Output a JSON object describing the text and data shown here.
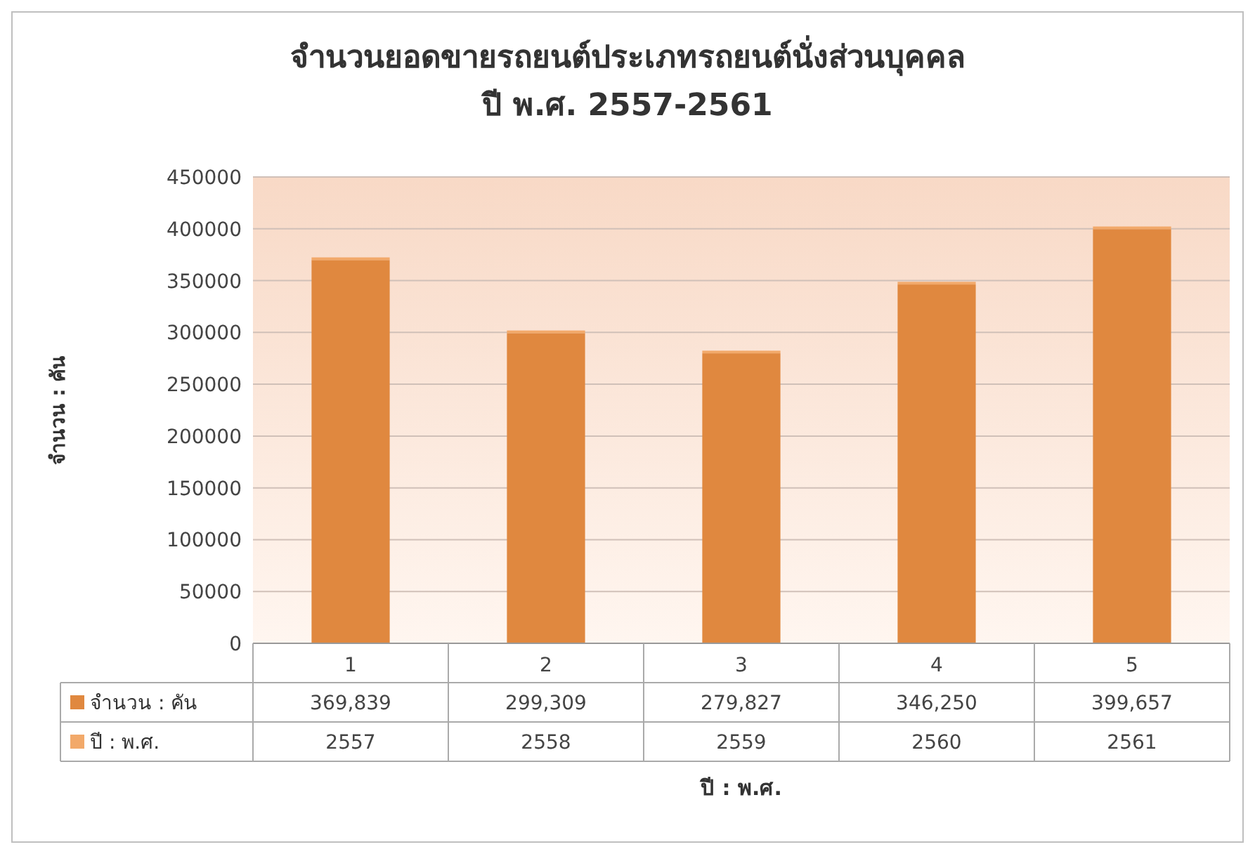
{
  "chart_data": {
    "type": "bar",
    "title": "จำนวนยอดขายรถยนต์ประเภทรถยนต์นั่งส่วนบุคคล",
    "subtitle": "ปี พ.ศ. 2557-2561",
    "xlabel": "ปี : พ.ศ.",
    "ylabel": "จำนวน : คัน",
    "categories": [
      "1",
      "2",
      "3",
      "4",
      "5"
    ],
    "stacked": true,
    "ylim": [
      0,
      450000
    ],
    "yticks": [
      0,
      50000,
      100000,
      150000,
      200000,
      250000,
      300000,
      350000,
      400000,
      450000
    ],
    "grid": "y",
    "legend": "bottom",
    "series": [
      {
        "name": "จำนวน : คัน",
        "color": "#e0883f",
        "values": [
          369839,
          299309,
          279827,
          346250,
          399657
        ],
        "value_labels": [
          "369,839",
          "299,309",
          "279,827",
          "346,250",
          "399,657"
        ]
      },
      {
        "name": "ปี : พ.ศ.",
        "color": "#f2a96a",
        "values": [
          2557,
          2558,
          2559,
          2560,
          2561
        ],
        "value_labels": [
          "2557",
          "2558",
          "2559",
          "2560",
          "2561"
        ]
      }
    ]
  }
}
